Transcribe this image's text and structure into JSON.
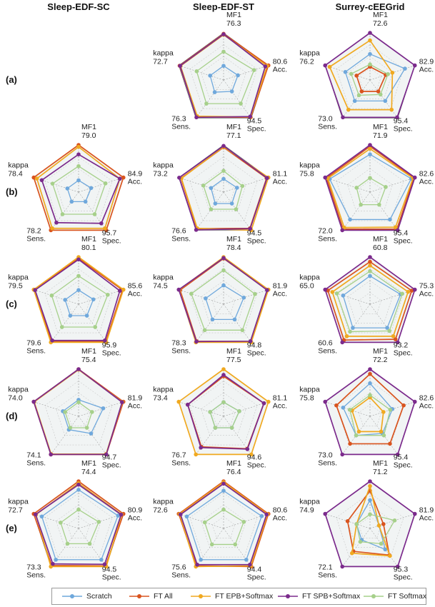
{
  "columns": [
    "Sleep-EDF-SC",
    "Sleep-EDF-ST",
    "Surrey-cEEGrid"
  ],
  "rows": [
    "(a)",
    "(b)",
    "(c)",
    "(d)",
    "(e)"
  ],
  "legend": [
    {
      "name": "Scratch",
      "color": "#6fa8dc"
    },
    {
      "name": "FT All",
      "color": "#d9541e"
    },
    {
      "name": "FT EPB+Softmax",
      "color": "#f0a920"
    },
    {
      "name": "FT SPB+Softmax",
      "color": "#7b2a8c"
    },
    {
      "name": "FT Softmax",
      "color": "#a6d08a"
    }
  ],
  "chart_data": [
    {
      "type": "radar",
      "row": "(a)",
      "column": "Sleep-EDF-SC",
      "empty": true
    },
    {
      "type": "radar",
      "row": "(a)",
      "column": "Sleep-EDF-ST",
      "axes": [
        {
          "name": "MF1",
          "value": "76.3"
        },
        {
          "name": "Acc.",
          "value": "80.6"
        },
        {
          "name": "Spec.",
          "value": "94.5"
        },
        {
          "name": "Sens.",
          "value": "76.3"
        },
        {
          "name": "kappa",
          "value": "72.7"
        }
      ],
      "series": [
        {
          "name": "Scratch",
          "values": [
            0.3,
            0.32,
            0.3,
            0.32,
            0.3
          ]
        },
        {
          "name": "FT All",
          "values": [
            0.98,
            1.0,
            0.98,
            0.97,
            0.98
          ]
        },
        {
          "name": "FT EPB+Softmax",
          "values": [
            0.96,
            0.97,
            0.97,
            0.95,
            0.96
          ]
        },
        {
          "name": "FT SPB+Softmax",
          "values": [
            0.97,
            0.93,
            0.96,
            0.98,
            0.97
          ]
        },
        {
          "name": "FT Softmax",
          "values": [
            0.6,
            0.68,
            0.62,
            0.62,
            0.6
          ]
        }
      ]
    },
    {
      "type": "radar",
      "row": "(a)",
      "column": "Surrey-cEEGrid",
      "axes": [
        {
          "name": "MF1",
          "value": "72.6"
        },
        {
          "name": "Acc.",
          "value": "82.9"
        },
        {
          "name": "Spec.",
          "value": "95.4"
        },
        {
          "name": "Sens.",
          "value": "73.0"
        },
        {
          "name": "kappa",
          "value": "76.2"
        }
      ],
      "series": [
        {
          "name": "Scratch",
          "values": [
            0.55,
            0.78,
            0.55,
            0.55,
            0.55
          ]
        },
        {
          "name": "FT All",
          "values": [
            0.28,
            0.35,
            0.3,
            0.3,
            0.3
          ]
        },
        {
          "name": "FT EPB+Softmax",
          "values": [
            0.84,
            0.5,
            0.78,
            0.78,
            0.9
          ]
        },
        {
          "name": "FT SPB+Softmax",
          "values": [
            1.0,
            1.0,
            0.98,
            0.98,
            1.0
          ]
        },
        {
          "name": "FT Softmax",
          "values": [
            0.33,
            0.4,
            0.38,
            0.4,
            0.42
          ]
        }
      ]
    },
    {
      "type": "radar",
      "row": "(b)",
      "column": "Sleep-EDF-SC",
      "axes": [
        {
          "name": "MF1",
          "value": "79.0"
        },
        {
          "name": "Acc.",
          "value": "84.9"
        },
        {
          "name": "Spec.",
          "value": "95.7"
        },
        {
          "name": "Sens.",
          "value": "78.2"
        },
        {
          "name": "kappa",
          "value": "78.4"
        }
      ],
      "series": [
        {
          "name": "Scratch",
          "values": [
            0.25,
            0.28,
            0.25,
            0.25,
            0.25
          ]
        },
        {
          "name": "FT All",
          "values": [
            1.0,
            1.0,
            1.0,
            1.0,
            1.0
          ]
        },
        {
          "name": "FT EPB+Softmax",
          "values": [
            0.96,
            0.92,
            0.95,
            0.95,
            0.93
          ]
        },
        {
          "name": "FT SPB+Softmax",
          "values": [
            0.8,
            0.92,
            0.82,
            0.8,
            0.82
          ]
        },
        {
          "name": "FT Softmax",
          "values": [
            0.55,
            0.6,
            0.58,
            0.58,
            0.58
          ]
        }
      ]
    },
    {
      "type": "radar",
      "row": "(b)",
      "column": "Sleep-EDF-ST",
      "axes": [
        {
          "name": "MF1",
          "value": "77.1"
        },
        {
          "name": "Acc.",
          "value": "81.1"
        },
        {
          "name": "Spec.",
          "value": "94.5"
        },
        {
          "name": "Sens.",
          "value": "76.6"
        },
        {
          "name": "kappa",
          "value": "73.2"
        }
      ],
      "series": [
        {
          "name": "Scratch",
          "values": [
            0.28,
            0.3,
            0.3,
            0.3,
            0.28
          ]
        },
        {
          "name": "FT All",
          "values": [
            0.95,
            0.96,
            0.95,
            0.96,
            0.95
          ]
        },
        {
          "name": "FT EPB+Softmax",
          "values": [
            0.96,
            1.0,
            1.0,
            0.95,
            0.94
          ]
        },
        {
          "name": "FT SPB+Softmax",
          "values": [
            0.98,
            0.97,
            0.96,
            0.99,
            0.99
          ]
        },
        {
          "name": "FT Softmax",
          "values": [
            0.45,
            0.42,
            0.45,
            0.45,
            0.45
          ]
        }
      ]
    },
    {
      "type": "radar",
      "row": "(b)",
      "column": "Surrey-cEEGrid",
      "axes": [
        {
          "name": "MF1",
          "value": "71.9"
        },
        {
          "name": "Acc.",
          "value": "82.6"
        },
        {
          "name": "Spec.",
          "value": "95.4"
        },
        {
          "name": "Sens.",
          "value": "72.0"
        },
        {
          "name": "kappa",
          "value": "75.8"
        }
      ],
      "series": [
        {
          "name": "Scratch",
          "values": [
            0.8,
            0.92,
            0.72,
            0.72,
            0.9
          ]
        },
        {
          "name": "FT All",
          "values": [
            0.97,
            0.98,
            0.97,
            0.97,
            0.97
          ]
        },
        {
          "name": "FT EPB+Softmax",
          "values": [
            0.92,
            0.96,
            0.92,
            0.93,
            0.94
          ]
        },
        {
          "name": "FT SPB+Softmax",
          "values": [
            1.0,
            1.0,
            1.0,
            1.0,
            1.0
          ]
        },
        {
          "name": "FT Softmax",
          "values": [
            0.3,
            0.35,
            0.33,
            0.33,
            0.3
          ]
        }
      ]
    },
    {
      "type": "radar",
      "row": "(c)",
      "column": "Sleep-EDF-SC",
      "axes": [
        {
          "name": "MF1",
          "value": "80.1"
        },
        {
          "name": "Acc.",
          "value": "85.6"
        },
        {
          "name": "Spec.",
          "value": "95.9"
        },
        {
          "name": "Sens.",
          "value": "79.6"
        },
        {
          "name": "kappa",
          "value": "79.5"
        }
      ],
      "series": [
        {
          "name": "Scratch",
          "values": [
            0.3,
            0.33,
            0.3,
            0.3,
            0.3
          ]
        },
        {
          "name": "FT All",
          "values": [
            0.97,
            0.98,
            0.98,
            0.98,
            0.98
          ]
        },
        {
          "name": "FT EPB+Softmax",
          "values": [
            1.0,
            1.0,
            1.0,
            1.0,
            1.0
          ]
        },
        {
          "name": "FT SPB+Softmax",
          "values": [
            0.95,
            0.92,
            0.95,
            0.95,
            0.97
          ]
        },
        {
          "name": "FT Softmax",
          "values": [
            0.6,
            0.65,
            0.6,
            0.6,
            0.6
          ]
        }
      ]
    },
    {
      "type": "radar",
      "row": "(c)",
      "column": "Sleep-EDF-ST",
      "axes": [
        {
          "name": "MF1",
          "value": "78.4"
        },
        {
          "name": "Acc.",
          "value": "81.9"
        },
        {
          "name": "Spec.",
          "value": "94.8"
        },
        {
          "name": "Sens.",
          "value": "78.3"
        },
        {
          "name": "kappa",
          "value": "74.5"
        }
      ],
      "series": [
        {
          "name": "Scratch",
          "values": [
            0.4,
            0.45,
            0.4,
            0.4,
            0.4
          ]
        },
        {
          "name": "FT All",
          "values": [
            0.97,
            0.98,
            0.98,
            0.97,
            0.97
          ]
        },
        {
          "name": "FT EPB+Softmax",
          "values": [
            1.0,
            1.0,
            1.0,
            1.0,
            0.99
          ]
        },
        {
          "name": "FT SPB+Softmax",
          "values": [
            0.98,
            0.97,
            0.97,
            0.98,
            1.0
          ]
        },
        {
          "name": "FT Softmax",
          "values": [
            0.72,
            0.7,
            0.68,
            0.68,
            0.72
          ]
        }
      ]
    },
    {
      "type": "radar",
      "row": "(c)",
      "column": "Surrey-cEEGrid",
      "axes": [
        {
          "name": "MF1",
          "value": "60.8"
        },
        {
          "name": "Acc.",
          "value": "75.3"
        },
        {
          "name": "Spec.",
          "value": "93.2"
        },
        {
          "name": "Sens.",
          "value": "60.6"
        },
        {
          "name": "kappa",
          "value": "65.0"
        }
      ],
      "series": [
        {
          "name": "Scratch",
          "values": [
            0.6,
            0.68,
            0.62,
            0.62,
            0.6
          ]
        },
        {
          "name": "FT All",
          "values": [
            0.9,
            0.93,
            0.92,
            0.94,
            0.94
          ]
        },
        {
          "name": "FT EPB+Softmax",
          "values": [
            0.82,
            0.85,
            0.84,
            0.84,
            0.84
          ]
        },
        {
          "name": "FT SPB+Softmax",
          "values": [
            1.0,
            1.0,
            1.0,
            1.0,
            1.0
          ]
        },
        {
          "name": "FT Softmax",
          "values": [
            0.7,
            0.72,
            0.7,
            0.72,
            0.74
          ]
        }
      ]
    },
    {
      "type": "radar",
      "row": "(d)",
      "column": "Sleep-EDF-SC",
      "axes": [
        {
          "name": "MF1",
          "value": "75.4"
        },
        {
          "name": "Acc.",
          "value": "81.9"
        },
        {
          "name": "Spec.",
          "value": "94.7"
        },
        {
          "name": "Sens.",
          "value": "74.1"
        },
        {
          "name": "kappa",
          "value": "74.0"
        }
      ],
      "series": [
        {
          "name": "Scratch",
          "values": [
            0.35,
            0.55,
            0.45,
            0.35,
            0.35
          ]
        },
        {
          "name": "FT All",
          "values": [
            1.0,
            1.0,
            1.0,
            1.0,
            1.0
          ]
        },
        {
          "name": "FT EPB+Softmax",
          "values": [
            0.99,
            0.98,
            0.99,
            0.99,
            0.99
          ]
        },
        {
          "name": "FT SPB+Softmax",
          "values": [
            1.0,
            0.97,
            1.0,
            1.0,
            1.0
          ]
        },
        {
          "name": "FT Softmax",
          "values": [
            0.3,
            0.3,
            0.3,
            0.3,
            0.3
          ]
        }
      ]
    },
    {
      "type": "radar",
      "row": "(d)",
      "column": "Sleep-EDF-ST",
      "axes": [
        {
          "name": "MF1",
          "value": "77.5"
        },
        {
          "name": "Acc.",
          "value": "81.1"
        },
        {
          "name": "Spec.",
          "value": "94.6"
        },
        {
          "name": "Sens.",
          "value": "76.7"
        },
        {
          "name": "kappa",
          "value": "73.4"
        }
      ],
      "series": [
        {
          "name": "Scratch",
          "values": [
            0.3,
            0.35,
            0.3,
            0.3,
            0.3
          ]
        },
        {
          "name": "FT All",
          "values": [
            0.85,
            0.9,
            0.85,
            0.8,
            0.8
          ]
        },
        {
          "name": "FT EPB+Softmax",
          "values": [
            1.0,
            1.0,
            1.0,
            1.0,
            1.0
          ]
        },
        {
          "name": "FT SPB+Softmax",
          "values": [
            0.88,
            0.9,
            0.86,
            0.82,
            0.8
          ]
        },
        {
          "name": "FT Softmax",
          "values": [
            0.3,
            0.35,
            0.3,
            0.3,
            0.3
          ]
        }
      ]
    },
    {
      "type": "radar",
      "row": "(d)",
      "column": "Surrey-cEEGrid",
      "axes": [
        {
          "name": "MF1",
          "value": "72.2"
        },
        {
          "name": "Acc.",
          "value": "82.6"
        },
        {
          "name": "Spec.",
          "value": "95.4"
        },
        {
          "name": "Sens.",
          "value": "73.0"
        },
        {
          "name": "kappa",
          "value": "75.8"
        }
      ],
      "series": [
        {
          "name": "Scratch",
          "values": [
            0.7,
            0.5,
            0.45,
            0.5,
            0.6
          ]
        },
        {
          "name": "FT All",
          "values": [
            0.9,
            0.75,
            0.72,
            0.72,
            0.75
          ]
        },
        {
          "name": "FT EPB+Softmax",
          "values": [
            0.4,
            0.3,
            0.4,
            0.4,
            0.4
          ]
        },
        {
          "name": "FT SPB+Softmax",
          "values": [
            1.0,
            1.0,
            1.0,
            1.0,
            1.0
          ]
        },
        {
          "name": "FT Softmax",
          "values": [
            0.45,
            0.45,
            0.5,
            0.5,
            0.45
          ]
        }
      ]
    },
    {
      "type": "radar",
      "row": "(e)",
      "column": "Sleep-EDF-SC",
      "axes": [
        {
          "name": "MF1",
          "value": "74.4"
        },
        {
          "name": "Acc.",
          "value": "80.9"
        },
        {
          "name": "Spec.",
          "value": "94.5"
        },
        {
          "name": "Sens.",
          "value": "73.3"
        },
        {
          "name": "kappa",
          "value": "72.7"
        }
      ],
      "series": [
        {
          "name": "Scratch",
          "values": [
            0.82,
            0.88,
            0.82,
            0.82,
            0.82
          ]
        },
        {
          "name": "FT All",
          "values": [
            1.0,
            1.0,
            0.98,
            0.97,
            1.0
          ]
        },
        {
          "name": "FT EPB+Softmax",
          "values": [
            0.96,
            0.96,
            1.0,
            1.0,
            0.95
          ]
        },
        {
          "name": "FT SPB+Softmax",
          "values": [
            0.93,
            0.95,
            0.94,
            0.93,
            0.96
          ]
        },
        {
          "name": "FT Softmax",
          "values": [
            0.4,
            0.45,
            0.4,
            0.4,
            0.4
          ]
        }
      ]
    },
    {
      "type": "radar",
      "row": "(e)",
      "column": "Sleep-EDF-ST",
      "axes": [
        {
          "name": "MF1",
          "value": "76.4"
        },
        {
          "name": "Acc.",
          "value": "80.6"
        },
        {
          "name": "Spec.",
          "value": "94.4"
        },
        {
          "name": "Sens.",
          "value": "75.6"
        },
        {
          "name": "kappa",
          "value": "72.6"
        }
      ],
      "series": [
        {
          "name": "Scratch",
          "values": [
            0.8,
            0.85,
            0.82,
            0.82,
            0.82
          ]
        },
        {
          "name": "FT All",
          "values": [
            1.0,
            1.0,
            1.0,
            0.98,
            1.0
          ]
        },
        {
          "name": "FT EPB+Softmax",
          "values": [
            0.98,
            0.98,
            0.98,
            1.0,
            0.98
          ]
        },
        {
          "name": "FT SPB+Softmax",
          "values": [
            0.95,
            0.96,
            0.95,
            0.95,
            0.96
          ]
        },
        {
          "name": "FT Softmax",
          "values": [
            0.4,
            0.45,
            0.42,
            0.42,
            0.42
          ]
        }
      ]
    },
    {
      "type": "radar",
      "row": "(e)",
      "column": "Surrey-cEEGrid",
      "axes": [
        {
          "name": "MF1",
          "value": "71.2"
        },
        {
          "name": "Acc.",
          "value": "81.9"
        },
        {
          "name": "Spec.",
          "value": "95.3"
        },
        {
          "name": "Sens.",
          "value": "72.1"
        },
        {
          "name": "kappa",
          "value": "74.9"
        }
      ],
      "series": [
        {
          "name": "Scratch",
          "values": [
            0.6,
            0.2,
            0.55,
            0.3,
            0.3
          ]
        },
        {
          "name": "FT All",
          "values": [
            0.8,
            0.3,
            0.7,
            0.6,
            0.5
          ]
        },
        {
          "name": "FT EPB+Softmax",
          "values": [
            0.9,
            0.2,
            0.72,
            0.65,
            0.3
          ]
        },
        {
          "name": "FT SPB+Softmax",
          "values": [
            1.0,
            1.0,
            1.0,
            1.0,
            1.0
          ]
        },
        {
          "name": "FT Softmax",
          "values": [
            0.3,
            0.55,
            0.4,
            0.35,
            0.3
          ]
        }
      ]
    }
  ]
}
